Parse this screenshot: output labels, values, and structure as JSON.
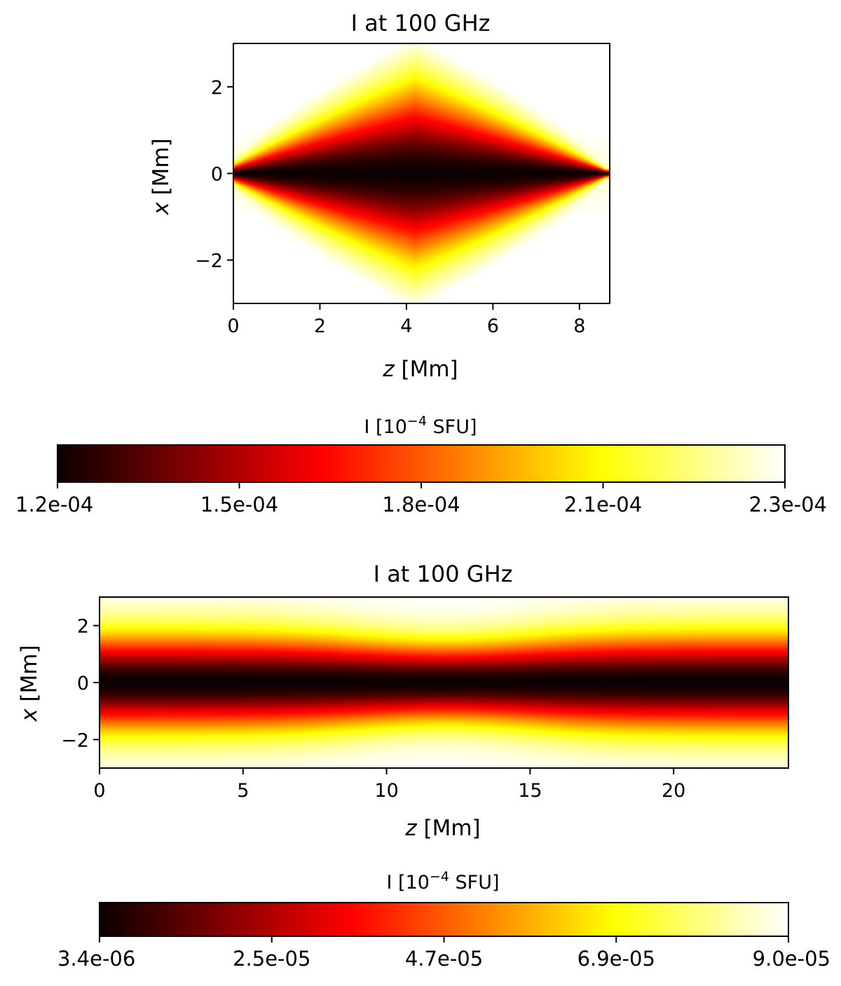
{
  "chart_data": [
    {
      "type": "heatmap",
      "title": "I at 100 GHz",
      "xlabel_var": "z",
      "xlabel_unit": "[Mm]",
      "ylabel_var": "x",
      "ylabel_unit": "[Mm]",
      "xlim": [
        0,
        8.7
      ],
      "ylim": [
        -3,
        3
      ],
      "xticks": [
        0,
        2,
        4,
        6,
        8
      ],
      "xtick_labels": [
        "0",
        "2",
        "4",
        "6",
        "8"
      ],
      "yticks": [
        -2,
        0,
        2
      ],
      "ytick_labels": [
        "−2",
        "0",
        "2"
      ],
      "colormap": "hot",
      "pattern": "diamond-shaped minimum centered at z≈4.2 Mm, x=0; intensity rises toward |x|=3",
      "colorbar": {
        "label_prefix": "I [10",
        "label_exp": "−4",
        "label_suffix": " SFU]",
        "orientation": "horizontal",
        "range": [
          0.00012,
          0.00023
        ],
        "ticks": [
          0.00012,
          0.00015,
          0.00018,
          0.00021,
          0.00023
        ],
        "tick_labels": [
          "1.2e-04",
          "1.5e-04",
          "1.8e-04",
          "2.1e-04",
          "2.3e-04"
        ]
      }
    },
    {
      "type": "heatmap",
      "title": "I at 100 GHz",
      "xlabel_var": "z",
      "xlabel_unit": "[Mm]",
      "ylabel_var": "x",
      "ylabel_unit": "[Mm]",
      "xlim": [
        0,
        24
      ],
      "ylim": [
        -3,
        3
      ],
      "xticks": [
        0,
        5,
        10,
        15,
        20
      ],
      "xtick_labels": [
        "0",
        "5",
        "10",
        "15",
        "20"
      ],
      "yticks": [
        -2,
        0,
        2
      ],
      "ytick_labels": [
        "−2",
        "0",
        "2"
      ],
      "colormap": "hot",
      "pattern": "horizontal dark band along x=0 for all z; band slightly narrower near z≈12 Mm",
      "colorbar": {
        "label_prefix": "I [10",
        "label_exp": "−4",
        "label_suffix": " SFU]",
        "orientation": "horizontal",
        "range": [
          3.4e-06,
          9e-05
        ],
        "ticks": [
          3.4e-06,
          2.5e-05,
          4.7e-05,
          6.9e-05,
          9e-05
        ],
        "tick_labels": [
          "3.4e-06",
          "2.5e-05",
          "4.7e-05",
          "6.9e-05",
          "9.0e-05"
        ]
      }
    }
  ]
}
